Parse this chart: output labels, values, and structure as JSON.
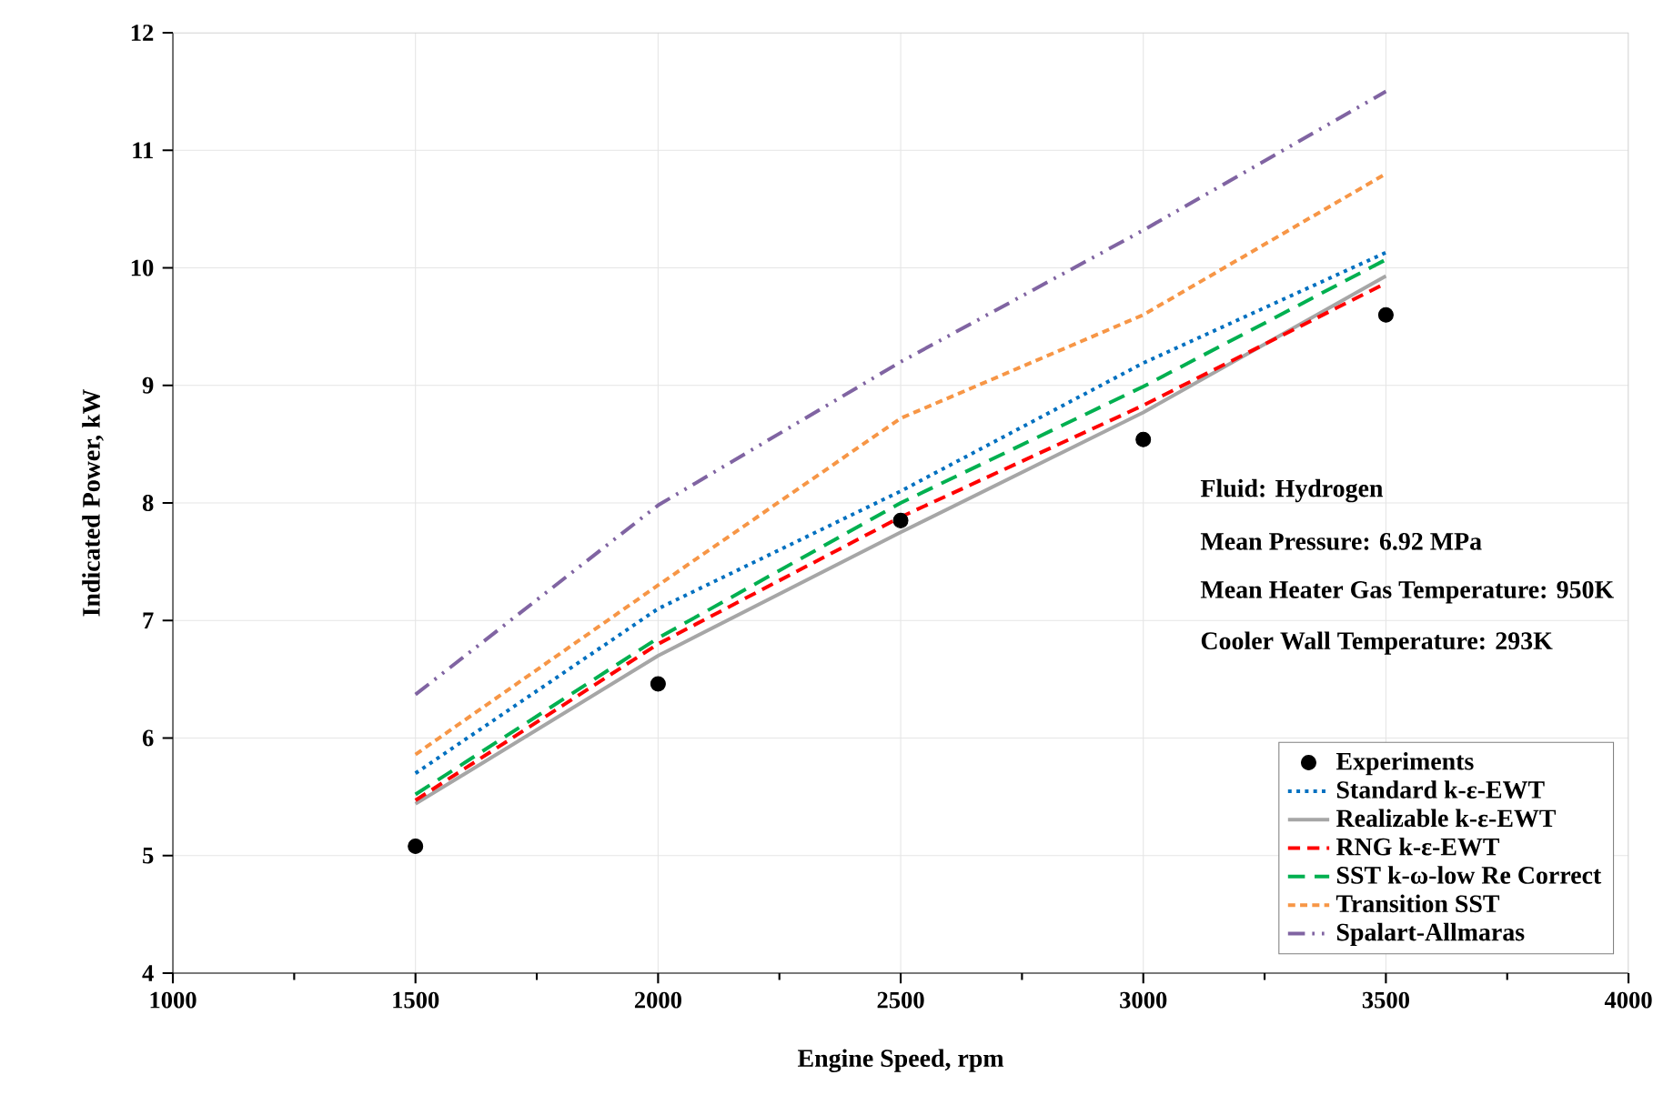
{
  "chart_data": {
    "type": "line",
    "xlabel": "Engine Speed, rpm",
    "ylabel": "Indicated Power, kW",
    "x": [
      1500,
      2000,
      2500,
      3000,
      3500
    ],
    "series": [
      {
        "name": "Experiments",
        "type": "scatter",
        "color": "#000000",
        "marker": "circle",
        "values": [
          5.08,
          6.46,
          7.85,
          8.54,
          9.6
        ]
      },
      {
        "name": "Standard k-ε-EWT",
        "color": "#0070c0",
        "line_style": "dotted",
        "values": [
          5.7,
          7.1,
          8.1,
          9.19,
          10.13
        ]
      },
      {
        "name": "Realizable k-ε-EWT",
        "color": "#a6a6a6",
        "line_style": "solid",
        "values": [
          5.44,
          6.7,
          7.75,
          8.77,
          9.93
        ]
      },
      {
        "name": "RNG k-ε-EWT",
        "color": "#ff0000",
        "line_style": "dashed",
        "values": [
          5.47,
          6.8,
          7.88,
          8.83,
          9.87
        ]
      },
      {
        "name": "SST k-ω-low Re Correct",
        "color": "#00b050",
        "line_style": "dashed",
        "values": [
          5.52,
          6.85,
          8.0,
          8.99,
          10.07
        ]
      },
      {
        "name": "Transition SST",
        "color": "#f79646",
        "line_style": "dashed",
        "values": [
          5.86,
          7.3,
          8.72,
          9.6,
          10.8
        ]
      },
      {
        "name": "Spalart-Allmaras",
        "color": "#8064a2",
        "line_style": "dashed",
        "values": [
          6.37,
          7.98,
          9.2,
          10.32,
          11.5
        ]
      }
    ],
    "xlim": [
      1000,
      4000
    ],
    "xticks": [
      1000,
      1500,
      2000,
      2500,
      3000,
      3500,
      4000
    ],
    "ylim": [
      4,
      12
    ],
    "yticks": [
      4,
      5,
      6,
      7,
      8,
      9,
      10,
      11,
      12
    ],
    "grid": true,
    "legend": "bottom right",
    "marker": "none",
    "annotations": [
      "Fluid: Hydrogen",
      "Mean Pressure: 6.92 MPa",
      "Mean Heater Gas Temperature: 950K",
      "Cooler Wall Temperature: 293K"
    ]
  }
}
